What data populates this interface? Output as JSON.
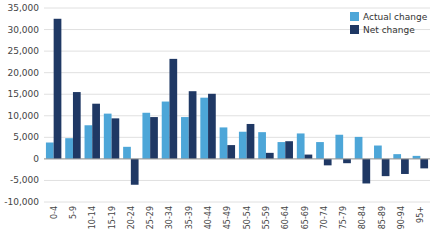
{
  "chart_data": {
    "type": "bar",
    "categories": [
      "0-4",
      "5-9",
      "10-14",
      "15-19",
      "20-24",
      "25-29",
      "30-34",
      "35-39",
      "40-44",
      "45-49",
      "50-54",
      "55-59",
      "60-64",
      "65-69",
      "70-74",
      "75-79",
      "80-84",
      "85-89",
      "90-94",
      "95+"
    ],
    "series": [
      {
        "name": "Actual change",
        "color": "#4da6d8",
        "values": [
          3800,
          4800,
          7800,
          10500,
          2800,
          10700,
          13300,
          9700,
          14200,
          7300,
          6300,
          6200,
          3900,
          5900,
          3900,
          5600,
          5100,
          3100,
          1100,
          700
        ]
      },
      {
        "name": "Net change",
        "color": "#1f3864",
        "values": [
          32500,
          15500,
          12800,
          9400,
          -6000,
          9700,
          23200,
          15700,
          15100,
          3200,
          8100,
          1400,
          4100,
          1000,
          -1500,
          -1000,
          -5700,
          -4000,
          -3500,
          -2200
        ]
      }
    ],
    "ylim": [
      -10000,
      35000
    ],
    "yticks": [
      {
        "value": -10000,
        "label": "-10,000"
      },
      {
        "value": -5000,
        "label": "-5,000"
      },
      0,
      {
        "value": 5000,
        "label": "5,000"
      },
      {
        "value": 10000,
        "label": "10,000"
      },
      {
        "value": 15000,
        "label": "15,000"
      },
      {
        "value": 20000,
        "label": "20,000"
      },
      {
        "value": 25000,
        "label": "25,000"
      },
      {
        "value": 30000,
        "label": "30,000"
      },
      {
        "value": 35000,
        "label": "35,000"
      }
    ],
    "grid": true,
    "legend": "upper right"
  }
}
